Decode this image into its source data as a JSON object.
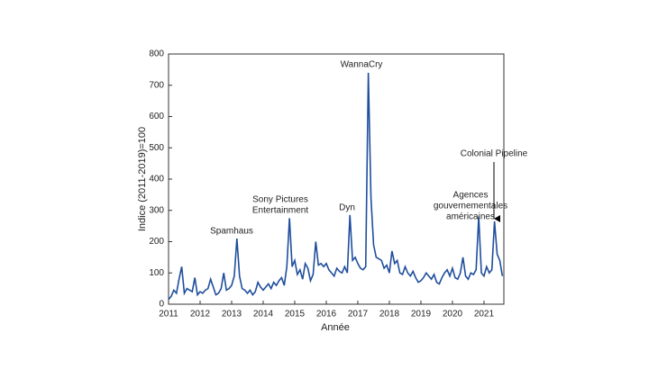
{
  "chart_data": {
    "type": "line",
    "xlabel": "Année",
    "ylabel": "Indice (2011-2019)=100",
    "xlim": [
      2011,
      2021.63
    ],
    "xticks": [
      2011,
      2012,
      2013,
      2014,
      2015,
      2016,
      2017,
      2018,
      2019,
      2020,
      2021
    ],
    "ylim": [
      0,
      800
    ],
    "yticks": [
      0,
      100,
      200,
      300,
      400,
      500,
      600,
      700,
      800
    ],
    "grid": false,
    "annotations": [
      {
        "lines": [
          "Spamhaus"
        ]
      },
      {
        "lines": [
          "Sony Pictures",
          "Entertainment"
        ]
      },
      {
        "lines": [
          "Dyn"
        ]
      },
      {
        "lines": [
          "WannaCry"
        ]
      },
      {
        "lines": [
          "Agences",
          "gouvernementales",
          "américaines"
        ]
      },
      {
        "lines": [
          "Colonial Pipeline"
        ]
      }
    ],
    "series": [
      {
        "color": "#1f4e9c",
        "x": [
          2011,
          2011.083,
          2011.167,
          2011.25,
          2011.333,
          2011.417,
          2011.5,
          2011.583,
          2011.667,
          2011.75,
          2011.833,
          2011.917,
          2012,
          2012.083,
          2012.167,
          2012.25,
          2012.333,
          2012.417,
          2012.5,
          2012.583,
          2012.667,
          2012.75,
          2012.833,
          2012.917,
          2013,
          2013.083,
          2013.167,
          2013.25,
          2013.333,
          2013.417,
          2013.5,
          2013.583,
          2013.667,
          2013.75,
          2013.833,
          2013.917,
          2014,
          2014.083,
          2014.167,
          2014.25,
          2014.333,
          2014.417,
          2014.5,
          2014.583,
          2014.667,
          2014.75,
          2014.833,
          2014.917,
          2015,
          2015.083,
          2015.167,
          2015.25,
          2015.333,
          2015.417,
          2015.5,
          2015.583,
          2015.667,
          2015.75,
          2015.833,
          2015.917,
          2016,
          2016.083,
          2016.167,
          2016.25,
          2016.333,
          2016.417,
          2016.5,
          2016.583,
          2016.667,
          2016.75,
          2016.833,
          2016.917,
          2017,
          2017.083,
          2017.167,
          2017.25,
          2017.333,
          2017.417,
          2017.5,
          2017.583,
          2017.667,
          2017.75,
          2017.833,
          2017.917,
          2018,
          2018.083,
          2018.167,
          2018.25,
          2018.333,
          2018.417,
          2018.5,
          2018.583,
          2018.667,
          2018.75,
          2018.833,
          2018.917,
          2019,
          2019.083,
          2019.167,
          2019.25,
          2019.333,
          2019.417,
          2019.5,
          2019.583,
          2019.667,
          2019.75,
          2019.833,
          2019.917,
          2020,
          2020.083,
          2020.167,
          2020.25,
          2020.333,
          2020.417,
          2020.5,
          2020.583,
          2020.667,
          2020.75,
          2020.833,
          2020.917,
          2021,
          2021.083,
          2021.167,
          2021.25,
          2021.333,
          2021.417,
          2021.5,
          2021.583
        ],
        "values": [
          15,
          25,
          45,
          35,
          80,
          120,
          35,
          50,
          45,
          40,
          85,
          30,
          40,
          35,
          45,
          50,
          80,
          55,
          30,
          35,
          50,
          100,
          45,
          50,
          60,
          90,
          210,
          90,
          50,
          45,
          35,
          45,
          30,
          40,
          70,
          55,
          45,
          55,
          65,
          50,
          70,
          60,
          75,
          85,
          60,
          120,
          275,
          120,
          140,
          95,
          110,
          80,
          130,
          115,
          75,
          95,
          200,
          125,
          130,
          120,
          130,
          110,
          100,
          90,
          115,
          105,
          100,
          120,
          100,
          285,
          140,
          150,
          130,
          115,
          110,
          120,
          740,
          340,
          190,
          150,
          145,
          140,
          115,
          125,
          100,
          170,
          130,
          140,
          100,
          95,
          120,
          100,
          90,
          105,
          85,
          70,
          75,
          85,
          100,
          90,
          80,
          95,
          70,
          65,
          85,
          100,
          110,
          90,
          115,
          85,
          80,
          100,
          150,
          90,
          80,
          100,
          95,
          110,
          280,
          100,
          90,
          120,
          100,
          110,
          265,
          160,
          140,
          90
        ]
      }
    ]
  }
}
